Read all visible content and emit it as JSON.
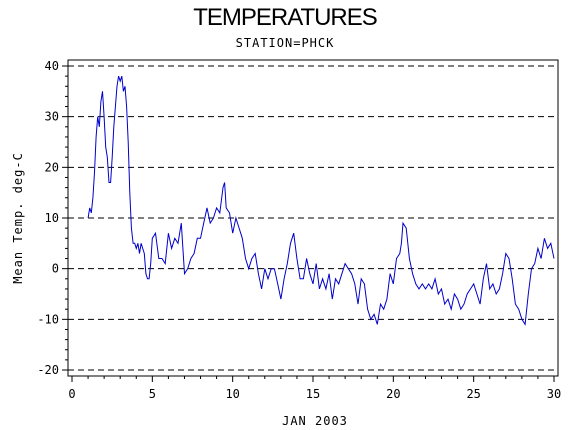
{
  "chart_data": {
    "type": "line",
    "title": "TEMPERATURES",
    "subtitle": "STATION=PHCK",
    "xlabel": "JAN 2003",
    "ylabel": "Mean Temp. deg-C",
    "xlim": [
      0,
      30
    ],
    "ylim": [
      -20,
      40
    ],
    "x_ticks": [
      0,
      5,
      10,
      15,
      20,
      25,
      30
    ],
    "y_ticks": [
      -20,
      -10,
      0,
      10,
      20,
      30,
      40
    ],
    "gridlines": {
      "y": [
        -20,
        -10,
        0,
        10,
        20,
        30,
        40
      ],
      "style": "dashed",
      "color": "#000000"
    },
    "series": [
      {
        "color": "#0000cc",
        "x": [
          1.0,
          1.1,
          1.2,
          1.3,
          1.4,
          1.5,
          1.6,
          1.7,
          1.8,
          1.9,
          2.0,
          2.1,
          2.2,
          2.3,
          2.4,
          2.5,
          2.6,
          2.7,
          2.8,
          2.9,
          3.0,
          3.1,
          3.2,
          3.3,
          3.4,
          3.5,
          3.6,
          3.7,
          3.8,
          3.9,
          4.0,
          4.1,
          4.2,
          4.3,
          4.4,
          4.5,
          4.6,
          4.7,
          4.8,
          4.9,
          5.0,
          5.2,
          5.4,
          5.6,
          5.8,
          6.0,
          6.2,
          6.4,
          6.6,
          6.8,
          7.0,
          7.2,
          7.4,
          7.6,
          7.8,
          8.0,
          8.2,
          8.4,
          8.6,
          8.8,
          9.0,
          9.2,
          9.4,
          9.5,
          9.6,
          9.8,
          10.0,
          10.2,
          10.4,
          10.6,
          10.8,
          11.0,
          11.2,
          11.4,
          11.6,
          11.8,
          12.0,
          12.2,
          12.4,
          12.6,
          12.8,
          13.0,
          13.2,
          13.4,
          13.6,
          13.8,
          14.0,
          14.2,
          14.4,
          14.6,
          14.8,
          15.0,
          15.2,
          15.4,
          15.6,
          15.8,
          16.0,
          16.2,
          16.4,
          16.6,
          16.8,
          17.0,
          17.2,
          17.4,
          17.6,
          17.8,
          18.0,
          18.2,
          18.4,
          18.6,
          18.8,
          19.0,
          19.2,
          19.4,
          19.6,
          19.8,
          20.0,
          20.2,
          20.4,
          20.5,
          20.6,
          20.8,
          21.0,
          21.2,
          21.4,
          21.6,
          21.8,
          22.0,
          22.2,
          22.4,
          22.6,
          22.8,
          23.0,
          23.2,
          23.4,
          23.6,
          23.8,
          24.0,
          24.2,
          24.4,
          24.6,
          24.8,
          25.0,
          25.2,
          25.4,
          25.6,
          25.8,
          26.0,
          26.2,
          26.4,
          26.6,
          26.8,
          27.0,
          27.2,
          27.4,
          27.6,
          27.8,
          28.0,
          28.2,
          28.4,
          28.6,
          28.8,
          29.0,
          29.2,
          29.4,
          29.6,
          29.8,
          30.0
        ],
        "y": [
          10,
          12,
          11,
          14,
          19,
          26,
          30,
          28,
          33,
          35,
          30,
          24,
          22,
          17,
          17,
          22,
          28,
          32,
          36,
          38,
          37,
          38,
          35,
          36,
          32,
          25,
          15,
          8,
          5,
          5,
          4,
          5,
          3,
          5,
          4,
          3,
          -1,
          -2,
          -2,
          1,
          6,
          7,
          2,
          2,
          1,
          7,
          4,
          6,
          5,
          9,
          -1,
          0,
          2,
          3,
          6,
          6,
          9,
          12,
          9,
          10,
          12,
          11,
          16,
          17,
          12,
          11,
          7,
          10,
          8,
          6,
          2,
          0,
          2,
          3,
          -1,
          -4,
          0,
          -2,
          0,
          0,
          -3,
          -6,
          -2,
          1,
          5,
          7,
          2,
          -2,
          -2,
          2,
          -1,
          -3,
          1,
          -4,
          -2,
          -4,
          -1,
          -6,
          -2,
          -3,
          -1,
          1,
          0,
          -1,
          -3,
          -7,
          -2,
          -3,
          -8,
          -10,
          -9,
          -11,
          -7,
          -8,
          -6,
          -1,
          -3,
          2,
          3,
          5,
          9,
          8,
          2,
          -1,
          -3,
          -4,
          -3,
          -4,
          -3,
          -4,
          -2,
          -5,
          -4,
          -7,
          -6,
          -8,
          -5,
          -6,
          -8,
          -7,
          -5,
          -4,
          -3,
          -5,
          -7,
          -2,
          1,
          -4,
          -3,
          -5,
          -4,
          -1,
          3,
          2,
          -2,
          -7,
          -8,
          -10,
          -11,
          -5,
          0,
          1,
          4,
          2,
          6,
          4,
          5,
          2
        ]
      }
    ]
  }
}
